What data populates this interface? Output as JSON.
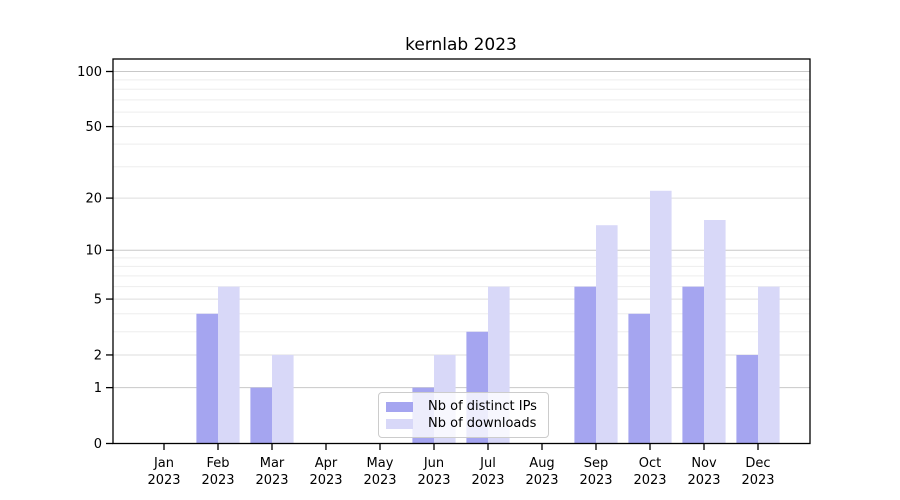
{
  "chart_data": {
    "type": "bar",
    "title": "kernlab 2023",
    "categories": [
      "Jan 2023",
      "Feb 2023",
      "Mar 2023",
      "Apr 2023",
      "May 2023",
      "Jun 2023",
      "Jul 2023",
      "Aug 2023",
      "Sep 2023",
      "Oct 2023",
      "Nov 2023",
      "Dec 2023"
    ],
    "series": [
      {
        "name": "Nb of distinct IPs",
        "color": "#a5a5f0",
        "values": [
          0,
          4,
          1,
          0,
          0,
          1,
          3,
          0,
          6,
          4,
          6,
          2
        ]
      },
      {
        "name": "Nb of downloads",
        "color": "#d8d8f8",
        "values": [
          0,
          6,
          2,
          0,
          0,
          2,
          6,
          0,
          14,
          22,
          15,
          6
        ]
      }
    ],
    "xlabel": "",
    "ylabel": "",
    "y_scale": "log1p",
    "y_ticks": [
      0,
      1,
      2,
      5,
      10,
      20,
      50,
      100
    ],
    "y_minor_gridlines": [
      3,
      4,
      6,
      7,
      8,
      9,
      30,
      40,
      60,
      70,
      80,
      90
    ],
    "ylim": [
      0,
      118
    ],
    "grid": "horizontal",
    "legend_position": "bottom-center",
    "colors": {
      "axis": "#000000",
      "major_gridline": "#c8c8c8",
      "mid_gridline": "#dedede",
      "minor_gridline": "#ededed",
      "text": "#000000",
      "background": "#ffffff"
    }
  }
}
